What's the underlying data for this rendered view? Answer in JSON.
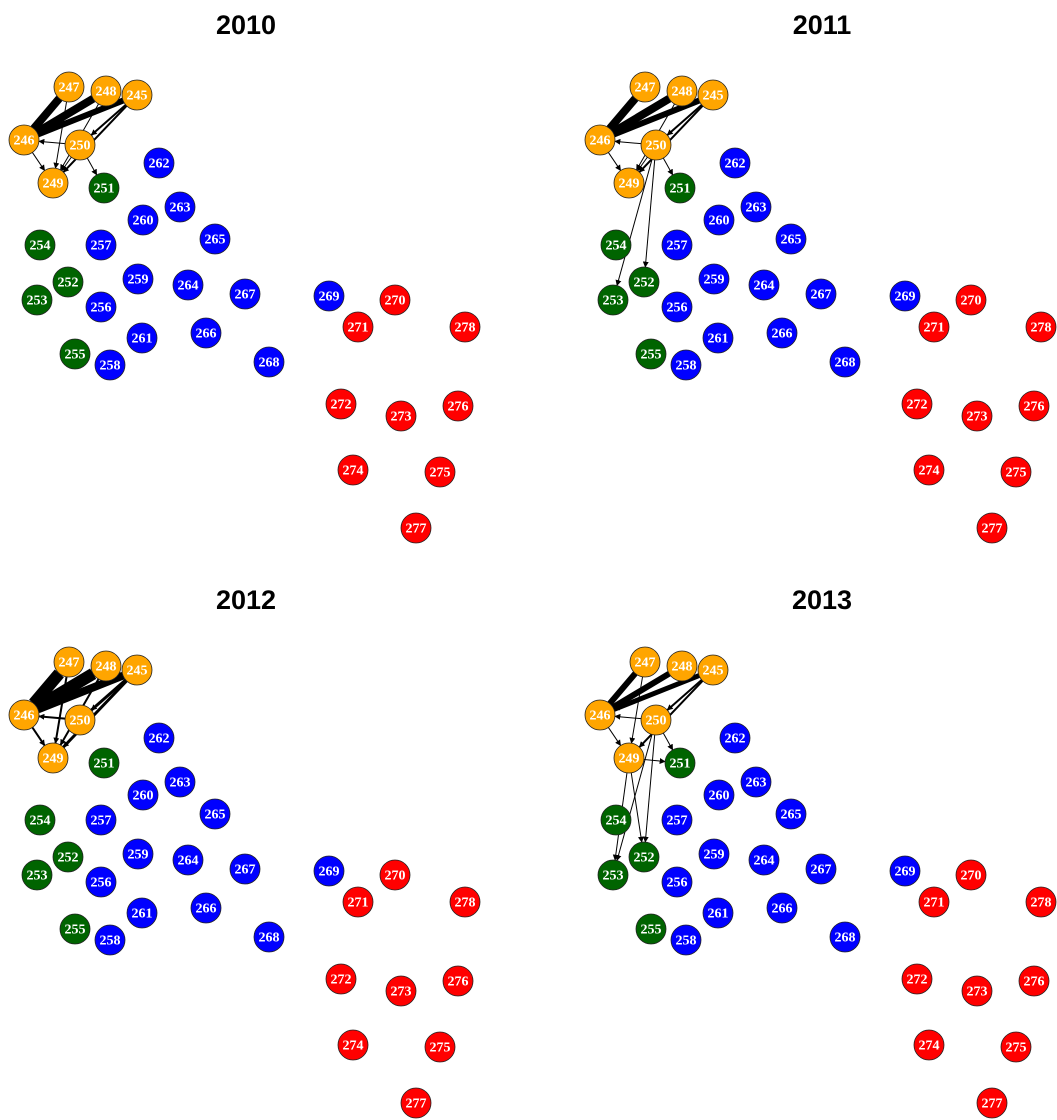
{
  "nodes": [
    {
      "label": "245",
      "color": "#FFA500"
    },
    {
      "label": "246",
      "color": "#FFA500"
    },
    {
      "label": "247",
      "color": "#FFA500"
    },
    {
      "label": "248",
      "color": "#FFA500"
    },
    {
      "label": "249",
      "color": "#FFA500"
    },
    {
      "label": "250",
      "color": "#FFA500"
    },
    {
      "label": "251",
      "color": "#006400"
    },
    {
      "label": "252",
      "color": "#006400"
    },
    {
      "label": "253",
      "color": "#006400"
    },
    {
      "label": "254",
      "color": "#006400"
    },
    {
      "label": "255",
      "color": "#006400"
    },
    {
      "label": "256",
      "color": "#0000FF"
    },
    {
      "label": "257",
      "color": "#0000FF"
    },
    {
      "label": "258",
      "color": "#0000FF"
    },
    {
      "label": "259",
      "color": "#0000FF"
    },
    {
      "label": "260",
      "color": "#0000FF"
    },
    {
      "label": "261",
      "color": "#0000FF"
    },
    {
      "label": "262",
      "color": "#0000FF"
    },
    {
      "label": "263",
      "color": "#0000FF"
    },
    {
      "label": "264",
      "color": "#0000FF"
    },
    {
      "label": "265",
      "color": "#0000FF"
    },
    {
      "label": "266",
      "color": "#0000FF"
    },
    {
      "label": "267",
      "color": "#0000FF"
    },
    {
      "label": "268",
      "color": "#0000FF"
    },
    {
      "label": "269",
      "color": "#0000FF"
    },
    {
      "label": "270",
      "color": "#FF0000"
    },
    {
      "label": "271",
      "color": "#FF0000"
    },
    {
      "label": "272",
      "color": "#FF0000"
    },
    {
      "label": "273",
      "color": "#FF0000"
    },
    {
      "label": "274",
      "color": "#FF0000"
    },
    {
      "label": "275",
      "color": "#FF0000"
    },
    {
      "label": "276",
      "color": "#FF0000"
    },
    {
      "label": "277",
      "color": "#FF0000"
    },
    {
      "label": "278",
      "color": "#FF0000"
    }
  ],
  "panels": [
    {
      "title": "2010",
      "edges": [
        {
          "from": "247",
          "to": "246",
          "width": 8
        },
        {
          "from": "248",
          "to": "246",
          "width": 8
        },
        {
          "from": "245",
          "to": "246",
          "width": 6
        },
        {
          "from": "245",
          "to": "249",
          "width": 2
        },
        {
          "from": "248",
          "to": "249",
          "width": 1
        },
        {
          "from": "250",
          "to": "246",
          "width": 1
        },
        {
          "from": "246",
          "to": "249",
          "width": 1
        },
        {
          "from": "250",
          "to": "249",
          "width": 1
        },
        {
          "from": "250",
          "to": "251",
          "width": 1
        },
        {
          "from": "247",
          "to": "249",
          "width": 1
        },
        {
          "from": "245",
          "to": "250",
          "width": 2
        }
      ]
    },
    {
      "title": "2011",
      "edges": [
        {
          "from": "247",
          "to": "246",
          "width": 8
        },
        {
          "from": "248",
          "to": "246",
          "width": 8
        },
        {
          "from": "245",
          "to": "246",
          "width": 6
        },
        {
          "from": "245",
          "to": "249",
          "width": 2
        },
        {
          "from": "248",
          "to": "249",
          "width": 1
        },
        {
          "from": "250",
          "to": "246",
          "width": 1
        },
        {
          "from": "246",
          "to": "249",
          "width": 1
        },
        {
          "from": "250",
          "to": "249",
          "width": 1
        },
        {
          "from": "250",
          "to": "251",
          "width": 1
        },
        {
          "from": "250",
          "to": "253",
          "width": 1
        },
        {
          "from": "250",
          "to": "252",
          "width": 1
        },
        {
          "from": "245",
          "to": "250",
          "width": 2
        }
      ]
    },
    {
      "title": "2012",
      "edges": [
        {
          "from": "247",
          "to": "246",
          "width": 12
        },
        {
          "from": "248",
          "to": "246",
          "width": 12
        },
        {
          "from": "245",
          "to": "246",
          "width": 8
        },
        {
          "from": "245",
          "to": "249",
          "width": 3
        },
        {
          "from": "248",
          "to": "249",
          "width": 2
        },
        {
          "from": "250",
          "to": "246",
          "width": 2
        },
        {
          "from": "246",
          "to": "249",
          "width": 2
        },
        {
          "from": "247",
          "to": "249",
          "width": 2
        },
        {
          "from": "245",
          "to": "250",
          "width": 3
        }
      ]
    },
    {
      "title": "2013",
      "edges": [
        {
          "from": "247",
          "to": "246",
          "width": 6
        },
        {
          "from": "248",
          "to": "246",
          "width": 6
        },
        {
          "from": "245",
          "to": "246",
          "width": 5
        },
        {
          "from": "245",
          "to": "249",
          "width": 2
        },
        {
          "from": "247",
          "to": "249",
          "width": 1
        },
        {
          "from": "250",
          "to": "246",
          "width": 1
        },
        {
          "from": "246",
          "to": "249",
          "width": 1
        },
        {
          "from": "249",
          "to": "251",
          "width": 1
        },
        {
          "from": "250",
          "to": "251",
          "width": 1
        },
        {
          "from": "249",
          "to": "253",
          "width": 1
        },
        {
          "from": "249",
          "to": "252",
          "width": 1
        },
        {
          "from": "250",
          "to": "253",
          "width": 1
        },
        {
          "from": "250",
          "to": "252",
          "width": 1
        },
        {
          "from": "245",
          "to": "250",
          "width": 2
        }
      ]
    }
  ]
}
